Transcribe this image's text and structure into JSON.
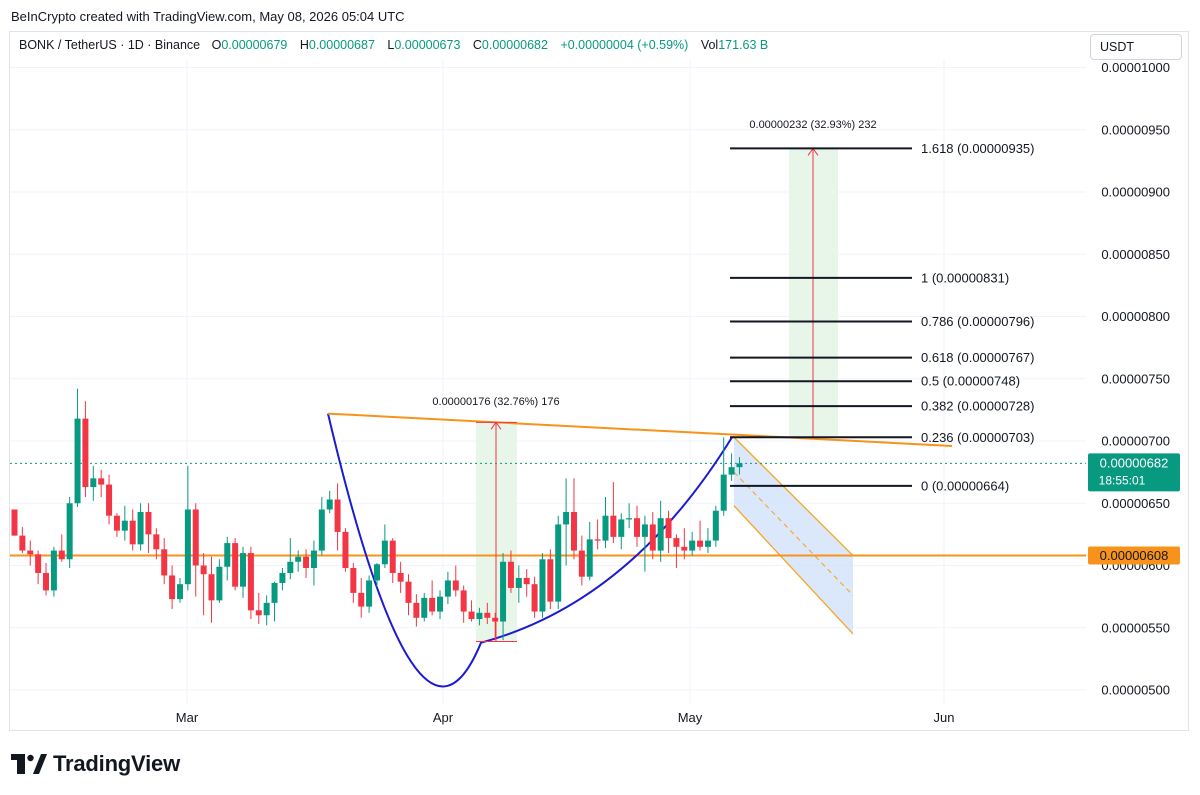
{
  "header": {
    "credit": "BeInCrypto created with TradingView.com, May 08, 2026 05:04 UTC",
    "symbol": "BONK / TetherUS · 1D · Binance",
    "open_label": "O",
    "open": "0.00000679",
    "high_label": "H",
    "high": "0.00000687",
    "low_label": "L",
    "low": "0.00000673",
    "close_label": "C",
    "close": "0.00000682",
    "change": "+0.00000004 (+0.59%)",
    "vol_label": "Vol",
    "vol": "171.63 B",
    "currency": "USDT"
  },
  "logo": {
    "text": "TradingView"
  },
  "colors": {
    "up": "#089981",
    "down": "#f23645",
    "orange": "#f7931a",
    "cup": "#1b1bd1",
    "channel": "#f5a623",
    "channel_fill": "#cfe0fb",
    "target_fill": "#e8f5e9",
    "measure": "#f23645"
  },
  "chart_data": {
    "type": "candlestick",
    "x_ticks": [
      "Mar",
      "Apr",
      "May",
      "Jun"
    ],
    "y_ticks": [
      "0.00000500",
      "0.00000550",
      "0.00000600",
      "0.00000650",
      "0.00000700",
      "0.00000750",
      "0.00000800",
      "0.00000850",
      "0.00000900",
      "0.00000950",
      "0.00001000"
    ],
    "ylim": [
      4.85e-06,
      1e-05
    ],
    "grid": true,
    "candles": [
      [
        6.45,
        6.45,
        6.24,
        6.24
      ],
      [
        6.24,
        6.31,
        6.1,
        6.12
      ],
      [
        6.12,
        6.2,
        6.0,
        6.09
      ],
      [
        6.09,
        6.12,
        5.85,
        5.94
      ],
      [
        5.94,
        6.02,
        5.76,
        5.8
      ],
      [
        5.8,
        6.15,
        5.75,
        6.12
      ],
      [
        6.12,
        6.25,
        6.03,
        6.05
      ],
      [
        6.05,
        6.55,
        5.98,
        6.5
      ],
      [
        6.5,
        7.42,
        6.47,
        7.18
      ],
      [
        7.18,
        7.32,
        6.55,
        6.63
      ],
      [
        6.63,
        6.8,
        6.52,
        6.7
      ],
      [
        6.7,
        6.77,
        6.55,
        6.65
      ],
      [
        6.65,
        6.73,
        6.33,
        6.4
      ],
      [
        6.4,
        6.42,
        6.23,
        6.28
      ],
      [
        6.28,
        6.48,
        6.2,
        6.36
      ],
      [
        6.36,
        6.45,
        6.12,
        6.17
      ],
      [
        6.17,
        6.5,
        6.12,
        6.43
      ],
      [
        6.43,
        6.5,
        6.1,
        6.25
      ],
      [
        6.25,
        6.3,
        6.05,
        6.13
      ],
      [
        6.13,
        6.22,
        5.85,
        5.92
      ],
      [
        5.92,
        6.0,
        5.65,
        5.73
      ],
      [
        5.73,
        5.9,
        5.7,
        5.85
      ],
      [
        5.85,
        6.8,
        5.8,
        6.45
      ],
      [
        6.45,
        6.5,
        5.75,
        6.0
      ],
      [
        6.0,
        6.1,
        5.6,
        5.93
      ],
      [
        5.93,
        6.07,
        5.54,
        5.72
      ],
      [
        5.72,
        6.05,
        5.7,
        5.99
      ],
      [
        5.99,
        6.23,
        5.88,
        6.18
      ],
      [
        6.18,
        6.22,
        5.8,
        5.83
      ],
      [
        5.83,
        6.15,
        5.74,
        6.1
      ],
      [
        6.1,
        6.15,
        5.57,
        5.64
      ],
      [
        5.64,
        5.78,
        5.53,
        5.6
      ],
      [
        5.6,
        5.76,
        5.52,
        5.7
      ],
      [
        5.7,
        5.87,
        5.55,
        5.86
      ],
      [
        5.86,
        5.98,
        5.8,
        5.94
      ],
      [
        5.94,
        6.22,
        5.89,
        6.03
      ],
      [
        6.03,
        6.12,
        5.95,
        6.07
      ],
      [
        6.07,
        6.13,
        5.9,
        5.98
      ],
      [
        5.98,
        6.2,
        5.84,
        6.12
      ],
      [
        6.12,
        6.55,
        6.08,
        6.45
      ],
      [
        6.45,
        6.6,
        6.42,
        6.53
      ],
      [
        6.53,
        6.66,
        6.12,
        6.27
      ],
      [
        6.27,
        6.3,
        5.95,
        5.98
      ],
      [
        5.98,
        6.02,
        5.7,
        5.78
      ],
      [
        5.78,
        5.9,
        5.58,
        5.67
      ],
      [
        5.67,
        5.92,
        5.62,
        5.88
      ],
      [
        5.88,
        6.02,
        5.83,
        6.01
      ],
      [
        6.01,
        6.33,
        5.98,
        6.2
      ],
      [
        6.2,
        6.22,
        5.86,
        5.94
      ],
      [
        5.94,
        6.03,
        5.78,
        5.87
      ],
      [
        5.87,
        5.93,
        5.6,
        5.7
      ],
      [
        5.7,
        5.77,
        5.51,
        5.58
      ],
      [
        5.58,
        5.78,
        5.55,
        5.74
      ],
      [
        5.74,
        5.88,
        5.6,
        5.63
      ],
      [
        5.63,
        5.8,
        5.57,
        5.75
      ],
      [
        5.75,
        5.95,
        5.69,
        5.88
      ],
      [
        5.88,
        6.0,
        5.75,
        5.8
      ],
      [
        5.8,
        5.84,
        5.54,
        5.63
      ],
      [
        5.63,
        5.72,
        5.55,
        5.57
      ],
      [
        5.57,
        5.66,
        5.52,
        5.62
      ],
      [
        5.62,
        5.7,
        5.53,
        5.58
      ],
      [
        5.58,
        5.62,
        5.4,
        5.55
      ],
      [
        5.55,
        6.1,
        5.4,
        6.03
      ],
      [
        6.03,
        6.12,
        5.78,
        5.82
      ],
      [
        5.82,
        6.0,
        5.7,
        5.9
      ],
      [
        5.9,
        5.97,
        5.75,
        5.85
      ],
      [
        5.85,
        5.91,
        5.58,
        5.63
      ],
      [
        5.63,
        6.1,
        5.58,
        6.05
      ],
      [
        6.05,
        6.13,
        5.65,
        5.71
      ],
      [
        5.71,
        6.4,
        5.65,
        6.33
      ],
      [
        6.33,
        6.7,
        6.0,
        6.43
      ],
      [
        6.43,
        6.7,
        6.05,
        6.12
      ],
      [
        6.12,
        6.24,
        5.84,
        5.91
      ],
      [
        5.91,
        6.35,
        5.88,
        6.21
      ],
      [
        6.21,
        6.37,
        6.13,
        6.2
      ],
      [
        6.2,
        6.55,
        6.14,
        6.4
      ],
      [
        6.4,
        6.67,
        6.18,
        6.23
      ],
      [
        6.23,
        6.42,
        6.13,
        6.37
      ],
      [
        6.37,
        6.5,
        6.3,
        6.38
      ],
      [
        6.38,
        6.48,
        6.15,
        6.23
      ],
      [
        6.23,
        6.4,
        5.95,
        6.33
      ],
      [
        6.33,
        6.43,
        6.05,
        6.12
      ],
      [
        6.12,
        6.52,
        6.03,
        6.38
      ],
      [
        6.38,
        6.44,
        6.1,
        6.22
      ],
      [
        6.22,
        6.25,
        5.98,
        6.15
      ],
      [
        6.15,
        6.3,
        6.05,
        6.12
      ],
      [
        6.12,
        6.27,
        6.08,
        6.2
      ],
      [
        6.2,
        6.36,
        6.12,
        6.15
      ],
      [
        6.15,
        6.3,
        6.1,
        6.2
      ],
      [
        6.2,
        6.48,
        6.15,
        6.44
      ],
      [
        6.44,
        7.03,
        6.4,
        6.73
      ],
      [
        6.73,
        6.9,
        6.68,
        6.79
      ],
      [
        6.79,
        6.87,
        6.73,
        6.82
      ]
    ],
    "price_labels": [
      {
        "text": "0.00000682",
        "sub": "18:55:01"
      },
      {
        "text": "0.00000608"
      }
    ],
    "fib_levels": [
      {
        "label": "0 (0.00000664)",
        "value": 6.64
      },
      {
        "label": "0.236 (0.00000703)",
        "value": 7.03
      },
      {
        "label": "0.382 (0.00000728)",
        "value": 7.28
      },
      {
        "label": "0.5 (0.00000748)",
        "value": 7.48
      },
      {
        "label": "0.618 (0.00000767)",
        "value": 7.67
      },
      {
        "label": "0.786 (0.00000796)",
        "value": 7.96
      },
      {
        "label": "1 (0.00000831)",
        "value": 8.31
      },
      {
        "label": "1.618 (0.00000935)",
        "value": 9.35
      }
    ],
    "annotations": [
      {
        "text": "0.00000176 (32.76%) 176"
      },
      {
        "text": "0.00000232 (32.93%) 232"
      }
    ]
  }
}
